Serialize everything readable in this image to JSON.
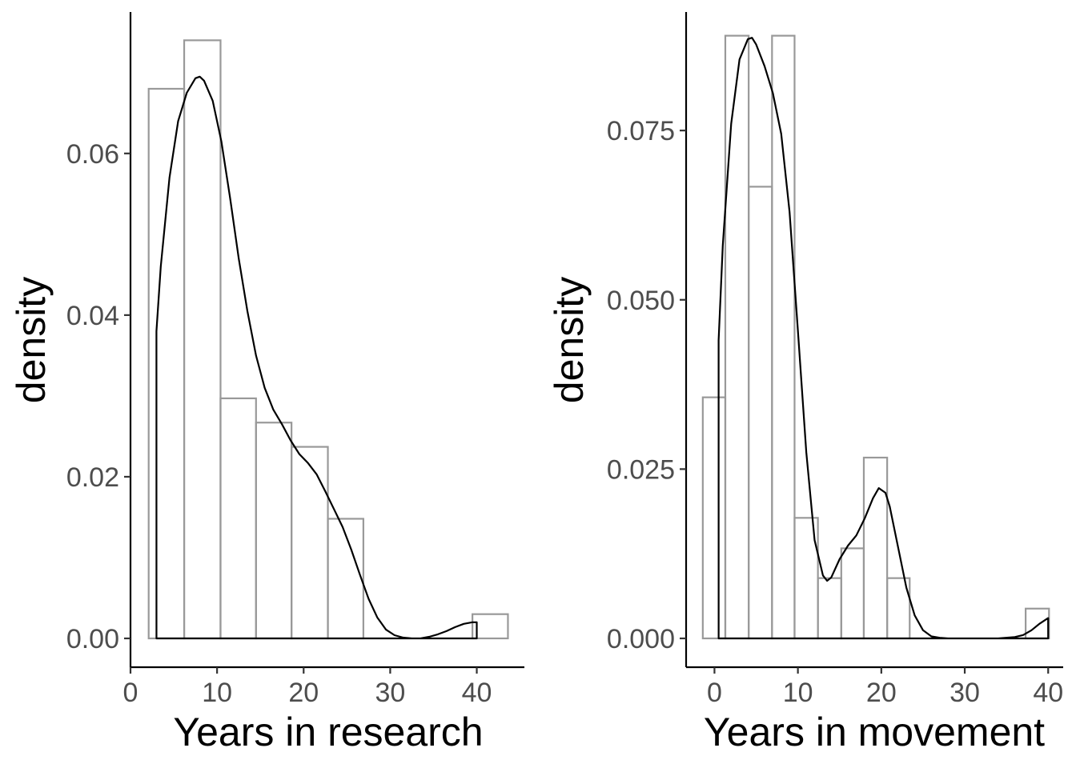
{
  "chart_data": [
    {
      "type": "histogram",
      "xlabel": "Years in research",
      "ylabel": "density",
      "xlim": [
        0,
        45.5
      ],
      "ylim": [
        0,
        0.0775
      ],
      "x_ticks": [
        0,
        10,
        20,
        30,
        40
      ],
      "y_ticks": [
        0.0,
        0.02,
        0.04,
        0.06
      ],
      "y_tick_labels": [
        "0.00",
        "0.02",
        "0.04",
        "0.06"
      ],
      "x_tick_labels": [
        "0",
        "10",
        "20",
        "30",
        "40"
      ],
      "grid": false,
      "bins": [
        {
          "x0": 2.1,
          "x1": 6.2,
          "density": 0.068
        },
        {
          "x0": 6.2,
          "x1": 10.4,
          "density": 0.074
        },
        {
          "x0": 10.4,
          "x1": 14.5,
          "density": 0.0297
        },
        {
          "x0": 14.5,
          "x1": 18.6,
          "density": 0.0267
        },
        {
          "x0": 18.6,
          "x1": 22.8,
          "density": 0.0237
        },
        {
          "x0": 22.8,
          "x1": 26.9,
          "density": 0.0148
        },
        {
          "x0": 39.5,
          "x1": 43.6,
          "density": 0.003
        }
      ],
      "density_curve": {
        "x": [
          3,
          3.5,
          4.5,
          5.5,
          6.5,
          7.5,
          8,
          8.5,
          9.5,
          10.5,
          11.5,
          12.5,
          13.5,
          14.5,
          15.5,
          16.5,
          17.5,
          18.5,
          19.5,
          20.5,
          21.5,
          22.5,
          23.5,
          24.5,
          25.5,
          26.5,
          27.5,
          28.5,
          29.5,
          30.5,
          31.5,
          32.5,
          33.5,
          34.5,
          35.5,
          36.5,
          37.5,
          38.5,
          39.5,
          40
        ],
        "y": [
          0.038,
          0.046,
          0.057,
          0.064,
          0.0675,
          0.0693,
          0.0695,
          0.069,
          0.0665,
          0.0615,
          0.0545,
          0.047,
          0.0405,
          0.035,
          0.031,
          0.0283,
          0.0265,
          0.0245,
          0.0228,
          0.0217,
          0.0203,
          0.0182,
          0.016,
          0.0138,
          0.011,
          0.0079,
          0.0049,
          0.0026,
          0.0011,
          0.0004,
          0.0001,
          0.0,
          0.0,
          0.0002,
          0.0005,
          0.0009,
          0.0014,
          0.0018,
          0.002,
          0.002
        ]
      }
    },
    {
      "type": "histogram",
      "xlabel": "Years in movement",
      "ylabel": "density",
      "xlim": [
        -3.4,
        41.8
      ],
      "ylim": [
        0,
        0.0925
      ],
      "x_ticks": [
        0,
        10,
        20,
        30,
        40
      ],
      "y_ticks": [
        0.0,
        0.025,
        0.05,
        0.075
      ],
      "y_tick_labels": [
        "0.000",
        "0.025",
        "0.050",
        "0.075"
      ],
      "x_tick_labels": [
        "0",
        "10",
        "20",
        "30",
        "40"
      ],
      "grid": false,
      "bins": [
        {
          "x0": -1.4,
          "x1": 1.3,
          "density": 0.0356
        },
        {
          "x0": 1.3,
          "x1": 4.1,
          "density": 0.089
        },
        {
          "x0": 4.1,
          "x1": 6.9,
          "density": 0.0667
        },
        {
          "x0": 6.9,
          "x1": 9.6,
          "density": 0.089
        },
        {
          "x0": 9.6,
          "x1": 12.4,
          "density": 0.0178
        },
        {
          "x0": 12.4,
          "x1": 15.2,
          "density": 0.0089
        },
        {
          "x0": 15.2,
          "x1": 17.9,
          "density": 0.0133
        },
        {
          "x0": 17.9,
          "x1": 20.7,
          "density": 0.0267
        },
        {
          "x0": 20.7,
          "x1": 23.4,
          "density": 0.0089
        },
        {
          "x0": 37.3,
          "x1": 40.1,
          "density": 0.0044
        }
      ],
      "density_curve": {
        "x": [
          0.5,
          1,
          2,
          3,
          4,
          4.5,
          5,
          6,
          7,
          8,
          9,
          10,
          11,
          12,
          13,
          13.5,
          14,
          15,
          16,
          17,
          18,
          19,
          19.7,
          20.5,
          21,
          22,
          23,
          24,
          25,
          26,
          27,
          28,
          30,
          32,
          34,
          36,
          37,
          38,
          39,
          40
        ],
        "y": [
          0.044,
          0.058,
          0.076,
          0.0855,
          0.0885,
          0.0887,
          0.0877,
          0.0845,
          0.0805,
          0.0745,
          0.063,
          0.0455,
          0.0275,
          0.0145,
          0.0093,
          0.0085,
          0.009,
          0.0117,
          0.0137,
          0.0152,
          0.0177,
          0.0207,
          0.0222,
          0.0215,
          0.0195,
          0.0135,
          0.0075,
          0.0034,
          0.0012,
          0.0003,
          0.0001,
          0.0,
          0.0,
          0.0,
          0.0,
          0.0002,
          0.0005,
          0.0012,
          0.0022,
          0.003
        ]
      }
    }
  ]
}
